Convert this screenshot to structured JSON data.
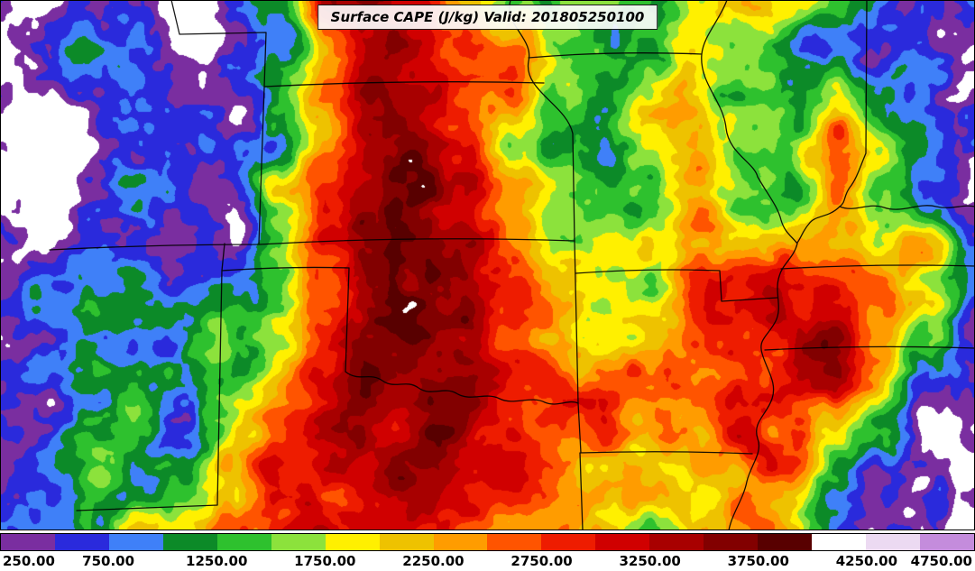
{
  "title": "Surface CAPE (J/kg) Valid: 201805250100",
  "chart_data": {
    "type": "heatmap",
    "title": "Surface CAPE (J/kg) Valid: 201805250100",
    "variable": "Surface CAPE",
    "units": "J/kg",
    "valid_time": "201805250100",
    "colorbar": {
      "orientation": "horizontal",
      "position": "bottom",
      "range": [
        250,
        4750
      ],
      "level_step": 250,
      "levels": [
        250,
        500,
        750,
        1000,
        1250,
        1500,
        1750,
        2000,
        2250,
        2500,
        2750,
        3000,
        3250,
        3500,
        3750,
        4000,
        4250,
        4500,
        4750
      ],
      "tick_labels": [
        "250.00",
        "750.00",
        "1250.00",
        "1750.00",
        "2250.00",
        "2750.00",
        "3250.00",
        "3750.00",
        "4250.00",
        "4750.00"
      ],
      "segment_colors": [
        "#7A2EA0",
        "#2A2ADC",
        "#3F80F8",
        "#0C8A28",
        "#2EC12E",
        "#8CE23C",
        "#FFF000",
        "#EEC200",
        "#FF9C00",
        "#FF5400",
        "#EE1C00",
        "#D00000",
        "#A80000",
        "#820000",
        "#580000",
        "#FFFFFF",
        "#ECDAF2",
        "#C48CDC"
      ],
      "below_min_color": "#FFFFFF"
    },
    "map_overlay": "state-borders",
    "grid": {
      "nx": 22,
      "ny": 12,
      "units": "J/kg",
      "values": [
        [
          150,
          250,
          600,
          450,
          300,
          350,
          900,
          2800,
          3100,
          3000,
          2600,
          1700,
          1100,
          1000,
          1400,
          2200,
          2400,
          1700,
          1400,
          800,
          400,
          300
        ],
        [
          100,
          200,
          700,
          400,
          200,
          300,
          900,
          2400,
          3200,
          3300,
          3000,
          2200,
          1300,
          1000,
          1300,
          2400,
          1900,
          1100,
          800,
          400,
          250,
          150
        ],
        [
          200,
          250,
          500,
          600,
          200,
          250,
          1500,
          2600,
          3300,
          3400,
          3100,
          2600,
          1400,
          1100,
          1800,
          2300,
          1600,
          1300,
          1800,
          900,
          600,
          400
        ],
        [
          150,
          200,
          300,
          400,
          500,
          700,
          1200,
          2500,
          3400,
          3900,
          3300,
          1800,
          1000,
          800,
          1600,
          2500,
          1900,
          1500,
          2400,
          1500,
          1000,
          600
        ],
        [
          100,
          150,
          500,
          700,
          600,
          400,
          1800,
          2700,
          3500,
          3700,
          3200,
          2200,
          1400,
          1200,
          1700,
          2600,
          1700,
          1400,
          2500,
          1800,
          900,
          500
        ],
        [
          250,
          400,
          900,
          800,
          400,
          300,
          1600,
          2800,
          3300,
          3400,
          3200,
          2500,
          1700,
          1600,
          2000,
          2700,
          2200,
          2600,
          2400,
          2000,
          2300,
          1100
        ],
        [
          150,
          600,
          1100,
          700,
          500,
          1200,
          1500,
          2900,
          3400,
          3600,
          3500,
          2800,
          2200,
          2000,
          1800,
          2800,
          3000,
          3200,
          3300,
          2700,
          2200,
          1300
        ],
        [
          300,
          500,
          1000,
          800,
          700,
          1400,
          2100,
          3100,
          3600,
          4000,
          3600,
          2900,
          2500,
          2200,
          2100,
          2600,
          2800,
          3300,
          3400,
          2600,
          1500,
          700
        ],
        [
          500,
          700,
          1200,
          900,
          800,
          1700,
          2500,
          3200,
          3900,
          3700,
          3600,
          3100,
          2900,
          2500,
          2300,
          2500,
          3000,
          3200,
          3400,
          2300,
          1100,
          500
        ],
        [
          600,
          900,
          1300,
          1000,
          1000,
          1900,
          2800,
          3300,
          3500,
          3600,
          3400,
          3000,
          2700,
          2400,
          2100,
          2300,
          2900,
          2600,
          1900,
          1400,
          500,
          250
        ],
        [
          500,
          800,
          1400,
          1200,
          1100,
          2000,
          2600,
          3100,
          3300,
          3400,
          3200,
          2800,
          2600,
          2300,
          2000,
          2100,
          2400,
          2200,
          1200,
          600,
          300,
          150
        ],
        [
          600,
          900,
          1300,
          1600,
          1400,
          2100,
          2700,
          3000,
          3100,
          3200,
          3000,
          2600,
          2400,
          2200,
          1800,
          2000,
          2100,
          1700,
          900,
          400,
          200,
          100
        ]
      ]
    }
  }
}
